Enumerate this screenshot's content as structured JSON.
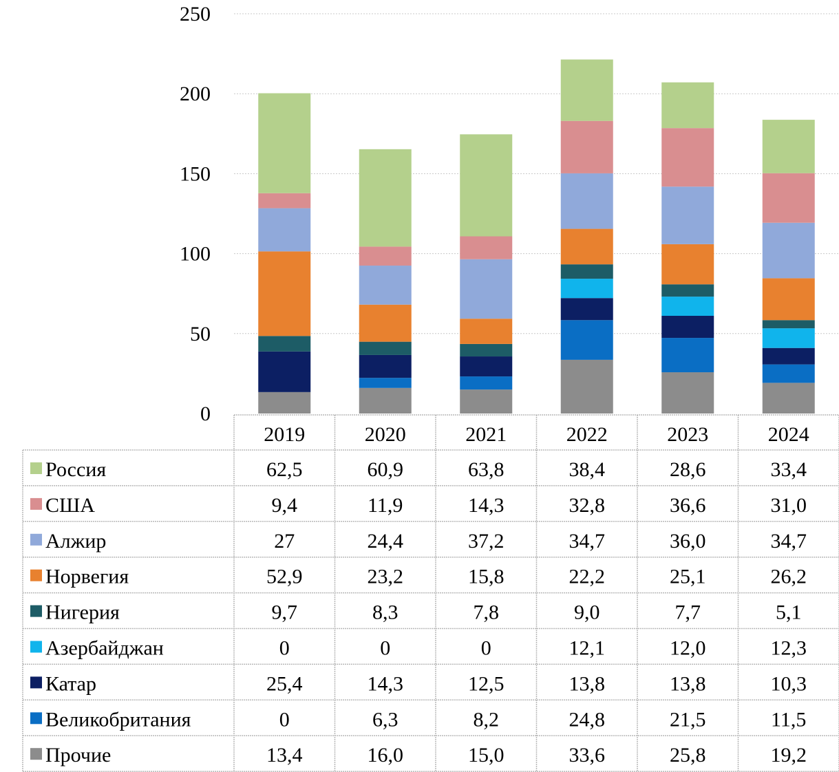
{
  "chart_data": {
    "type": "bar",
    "stacked": true,
    "title": "",
    "xlabel": "",
    "ylabel": "",
    "ylim": [
      0,
      250
    ],
    "yticks": [
      0,
      50,
      100,
      150,
      200,
      250
    ],
    "grid": true,
    "legend": "data-table-below",
    "categories": [
      "2019",
      "2020",
      "2021",
      "2022",
      "2023",
      "2024"
    ],
    "series": [
      {
        "name": "Прочие",
        "color": "#8c8c8c",
        "values": [
          13.4,
          16.0,
          15.0,
          33.6,
          25.8,
          19.2
        ],
        "labels": [
          "13,4",
          "16,0",
          "15,0",
          "33,6",
          "25,8",
          "19,2"
        ]
      },
      {
        "name": "Великобритания",
        "color": "#0a6ec4",
        "values": [
          0,
          6.3,
          8.2,
          24.8,
          21.5,
          11.5
        ],
        "labels": [
          "0",
          "6,3",
          "8,2",
          "24,8",
          "21,5",
          "11,5"
        ]
      },
      {
        "name": "Катар",
        "color": "#0c1f63",
        "values": [
          25.4,
          14.3,
          12.5,
          13.8,
          13.8,
          10.3
        ],
        "labels": [
          "25,4",
          "14,3",
          "12,5",
          "13,8",
          "13,8",
          "10,3"
        ]
      },
      {
        "name": "Азербайджан",
        "color": "#10b4ec",
        "values": [
          0,
          0,
          0,
          12.1,
          12.0,
          12.3
        ],
        "labels": [
          "0",
          "0",
          "0",
          "12,1",
          "12,0",
          "12,3"
        ]
      },
      {
        "name": "Нигерия",
        "color": "#1d5c66",
        "values": [
          9.7,
          8.3,
          7.8,
          9.0,
          7.7,
          5.1
        ],
        "labels": [
          "9,7",
          "8,3",
          "7,8",
          "9,0",
          "7,7",
          "5,1"
        ]
      },
      {
        "name": "Норвегия",
        "color": "#e8812f",
        "values": [
          52.9,
          23.2,
          15.8,
          22.2,
          25.1,
          26.2
        ],
        "labels": [
          "52,9",
          "23,2",
          "15,8",
          "22,2",
          "25,1",
          "26,2"
        ]
      },
      {
        "name": "Алжир",
        "color": "#90a9da",
        "values": [
          27,
          24.4,
          37.2,
          34.7,
          36.0,
          34.7
        ],
        "labels": [
          "27",
          "24,4",
          "37,2",
          "34,7",
          "36,0",
          "34,7"
        ]
      },
      {
        "name": "США",
        "color": "#d98e90",
        "values": [
          9.4,
          11.9,
          14.3,
          32.8,
          36.6,
          31.0
        ],
        "labels": [
          "9,4",
          "11,9",
          "14,3",
          "32,8",
          "36,6",
          "31,0"
        ]
      },
      {
        "name": "Россия",
        "color": "#b4d08c",
        "values": [
          62.5,
          60.9,
          63.8,
          38.4,
          28.6,
          33.4
        ],
        "labels": [
          "62,5",
          "60,9",
          "63,8",
          "38,4",
          "28,6",
          "33,4"
        ]
      }
    ],
    "table_row_order": [
      "Россия",
      "США",
      "Алжир",
      "Норвегия",
      "Нигерия",
      "Азербайджан",
      "Катар",
      "Великобритания",
      "Прочие"
    ]
  }
}
